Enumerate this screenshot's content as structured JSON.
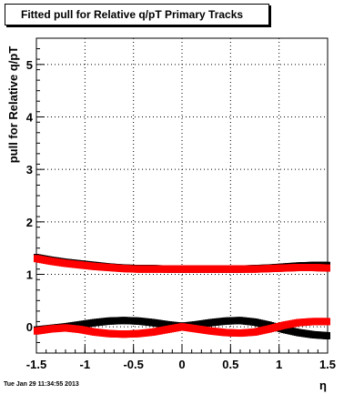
{
  "title": "Fitted pull for Relative q/pT  Primary Tracks",
  "timestamp": "Tue Jan 29 11:34:55 2013",
  "chart_data": {
    "type": "scatter",
    "title": "Fitted pull for Relative q/pT  Primary Tracks",
    "xlabel": "η",
    "ylabel": "pull for Relative q/pT",
    "xlim": [
      -1.5,
      1.5
    ],
    "ylim": [
      -0.5,
      5.5
    ],
    "xticks": [
      -1.5,
      -1,
      -0.5,
      0,
      0.5,
      1,
      1.5
    ],
    "xtick_labels": [
      "-1.5",
      "-1",
      "-0.5",
      "0",
      "0.5",
      "1",
      "1.5"
    ],
    "yticks": [
      0,
      1,
      2,
      3,
      4,
      5
    ],
    "ytick_labels": [
      "0",
      "1",
      "2",
      "3",
      "4",
      "5"
    ],
    "grid": true,
    "series": [
      {
        "color": "#000000",
        "x": [
          -1.5,
          -1.35,
          -1.2,
          -1.05,
          -0.9,
          -0.75,
          -0.6,
          -0.45,
          -0.3,
          -0.15,
          0,
          0.15,
          0.3,
          0.45,
          0.6,
          0.75,
          0.9,
          1.05,
          1.2,
          1.35,
          1.5
        ],
        "y": [
          -0.06,
          -0.03,
          0.0,
          0.04,
          0.08,
          0.11,
          0.12,
          0.11,
          0.08,
          0.04,
          0.01,
          0.04,
          0.08,
          0.11,
          0.12,
          0.09,
          0.03,
          -0.05,
          -0.11,
          -0.15,
          -0.17
        ]
      },
      {
        "color": "#000000",
        "x": [
          -1.5,
          -1.35,
          -1.2,
          -1.05,
          -0.9,
          -0.75,
          -0.6,
          -0.45,
          -0.3,
          -0.15,
          0,
          0.15,
          0.3,
          0.45,
          0.6,
          0.75,
          0.9,
          1.05,
          1.2,
          1.35,
          1.5
        ],
        "y": [
          1.32,
          1.27,
          1.23,
          1.2,
          1.17,
          1.14,
          1.12,
          1.11,
          1.11,
          1.1,
          1.1,
          1.1,
          1.1,
          1.1,
          1.1,
          1.11,
          1.12,
          1.14,
          1.16,
          1.17,
          1.17
        ]
      },
      {
        "color": "#ff0000",
        "x": [
          -1.5,
          -1.35,
          -1.2,
          -1.05,
          -0.9,
          -0.75,
          -0.6,
          -0.45,
          -0.3,
          -0.15,
          0,
          0.15,
          0.3,
          0.45,
          0.6,
          0.75,
          0.9,
          1.05,
          1.2,
          1.35,
          1.5
        ],
        "y": [
          -0.08,
          -0.04,
          -0.02,
          -0.05,
          -0.1,
          -0.13,
          -0.14,
          -0.13,
          -0.1,
          -0.05,
          0.0,
          -0.04,
          -0.08,
          -0.11,
          -0.12,
          -0.1,
          -0.04,
          0.03,
          0.08,
          0.1,
          0.1
        ]
      },
      {
        "color": "#ff0000",
        "x": [
          -1.5,
          -1.35,
          -1.2,
          -1.05,
          -0.9,
          -0.75,
          -0.6,
          -0.45,
          -0.3,
          -0.15,
          0,
          0.15,
          0.3,
          0.45,
          0.6,
          0.75,
          0.9,
          1.05,
          1.2,
          1.35,
          1.5
        ],
        "y": [
          1.3,
          1.25,
          1.21,
          1.18,
          1.15,
          1.13,
          1.11,
          1.1,
          1.1,
          1.1,
          1.1,
          1.1,
          1.1,
          1.1,
          1.1,
          1.1,
          1.11,
          1.12,
          1.13,
          1.13,
          1.12
        ]
      }
    ]
  }
}
